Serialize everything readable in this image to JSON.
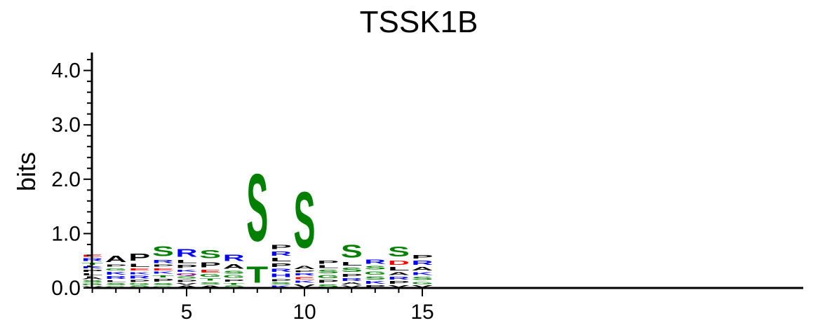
{
  "chart_data": {
    "type": "sequence-logo",
    "title": "TSSK1B",
    "xlabel": "",
    "ylabel": "bits",
    "ylim": [
      0,
      4.3
    ],
    "y_ticks": [
      "0.0",
      "1.0",
      "2.0",
      "3.0",
      "4.0"
    ],
    "y_tick_values": [
      0,
      1,
      2,
      3,
      4
    ],
    "x_ticks": [
      "5",
      "10",
      "15"
    ],
    "x_tick_values": [
      5,
      10,
      15
    ],
    "positions": [
      1,
      2,
      3,
      4,
      5,
      6,
      7,
      8,
      9,
      10,
      11,
      12,
      13,
      14,
      15
    ],
    "colors": {
      "S": "#008000",
      "T": "#008000",
      "G": "#008000",
      "C": "#008000",
      "R": "#0000ff",
      "K": "#0000ff",
      "H": "#0000ff",
      "D": "#ff0000",
      "E": "#ff0000",
      "A": "#000000",
      "P": "#000000",
      "L": "#000000",
      "V": "#000000",
      "I": "#000000",
      "F": "#000000",
      "M": "#000000",
      "W": "#000000",
      "Q": "#800080",
      "N": "#800080",
      "Y": "#008000"
    },
    "columns": [
      [
        [
          "V",
          0.04
        ],
        [
          "G",
          0.05
        ],
        [
          "S",
          0.06
        ],
        [
          "A",
          0.07
        ],
        [
          "L",
          0.06
        ],
        [
          "P",
          0.07
        ],
        [
          "K",
          0.06
        ],
        [
          "T",
          0.07
        ],
        [
          "R",
          0.08
        ],
        [
          "E",
          0.06
        ]
      ],
      [
        [
          "G",
          0.04
        ],
        [
          "S",
          0.06
        ],
        [
          "L",
          0.05
        ],
        [
          "R",
          0.08
        ],
        [
          "K",
          0.08
        ],
        [
          "G",
          0.07
        ],
        [
          "P",
          0.06
        ],
        [
          "A",
          0.18
        ]
      ],
      [
        [
          "S",
          0.05
        ],
        [
          "G",
          0.05
        ],
        [
          "P",
          0.06
        ],
        [
          "R",
          0.08
        ],
        [
          "K",
          0.07
        ],
        [
          "E",
          0.06
        ],
        [
          "L",
          0.09
        ],
        [
          "P",
          0.21
        ]
      ],
      [
        [
          "G",
          0.04
        ],
        [
          "S",
          0.06
        ],
        [
          "P",
          0.08
        ],
        [
          "T",
          0.07
        ],
        [
          "K",
          0.06
        ],
        [
          "E",
          0.07
        ],
        [
          "P",
          0.06
        ],
        [
          "R",
          0.09
        ],
        [
          "S",
          0.29
        ]
      ],
      [
        [
          "A",
          0.05
        ],
        [
          "V",
          0.05
        ],
        [
          "P",
          0.06
        ],
        [
          "S",
          0.06
        ],
        [
          "Q",
          0.06
        ],
        [
          "K",
          0.07
        ],
        [
          "P",
          0.09
        ],
        [
          "L",
          0.09
        ],
        [
          "R",
          0.23
        ]
      ],
      [
        [
          "A",
          0.05
        ],
        [
          "S",
          0.07
        ],
        [
          "T",
          0.07
        ],
        [
          "G",
          0.08
        ],
        [
          "E",
          0.08
        ],
        [
          "P",
          0.15
        ],
        [
          "S",
          0.24
        ]
      ],
      [
        [
          "S",
          0.05
        ],
        [
          "T",
          0.05
        ],
        [
          "P",
          0.07
        ],
        [
          "G",
          0.08
        ],
        [
          "S",
          0.08
        ],
        [
          "A",
          0.13
        ],
        [
          "R",
          0.18
        ]
      ],
      [
        [
          "T",
          0.48
        ],
        [
          "S",
          1.98
        ]
      ],
      [
        [
          "K",
          0.05
        ],
        [
          "S",
          0.06
        ],
        [
          "P",
          0.07
        ],
        [
          "H",
          0.1
        ],
        [
          "R",
          0.09
        ],
        [
          "P",
          0.1
        ],
        [
          "L",
          0.1
        ],
        [
          "R",
          0.12
        ],
        [
          "P",
          0.12
        ]
      ],
      [
        [
          "V",
          0.08
        ],
        [
          "K",
          0.07
        ],
        [
          "E",
          0.07
        ],
        [
          "R",
          0.06
        ],
        [
          "P",
          0.05
        ],
        [
          "A",
          0.09
        ],
        [
          "S",
          1.65
        ]
      ],
      [
        [
          "S",
          0.08
        ],
        [
          "P",
          0.08
        ],
        [
          "G",
          0.09
        ],
        [
          "S",
          0.1
        ],
        [
          "L",
          0.08
        ],
        [
          "P",
          0.09
        ]
      ],
      [
        [
          "V",
          0.05
        ],
        [
          "A",
          0.06
        ],
        [
          "R",
          0.08
        ],
        [
          "P",
          0.08
        ],
        [
          "S",
          0.12
        ],
        [
          "L",
          0.1
        ],
        [
          "S",
          0.37
        ]
      ],
      [
        [
          "P",
          0.06
        ],
        [
          "K",
          0.08
        ],
        [
          "S",
          0.09
        ],
        [
          "G",
          0.09
        ],
        [
          "S",
          0.1
        ],
        [
          "R",
          0.12
        ]
      ],
      [
        [
          "V",
          0.06
        ],
        [
          "P",
          0.08
        ],
        [
          "R",
          0.08
        ],
        [
          "A",
          0.08
        ],
        [
          "L",
          0.1
        ],
        [
          "D",
          0.12
        ],
        [
          "S",
          0.29
        ]
      ],
      [
        [
          "V",
          0.06
        ],
        [
          "G",
          0.07
        ],
        [
          "S",
          0.09
        ],
        [
          "K",
          0.08
        ],
        [
          "A",
          0.1
        ],
        [
          "R",
          0.12
        ],
        [
          "P",
          0.1
        ]
      ]
    ]
  }
}
